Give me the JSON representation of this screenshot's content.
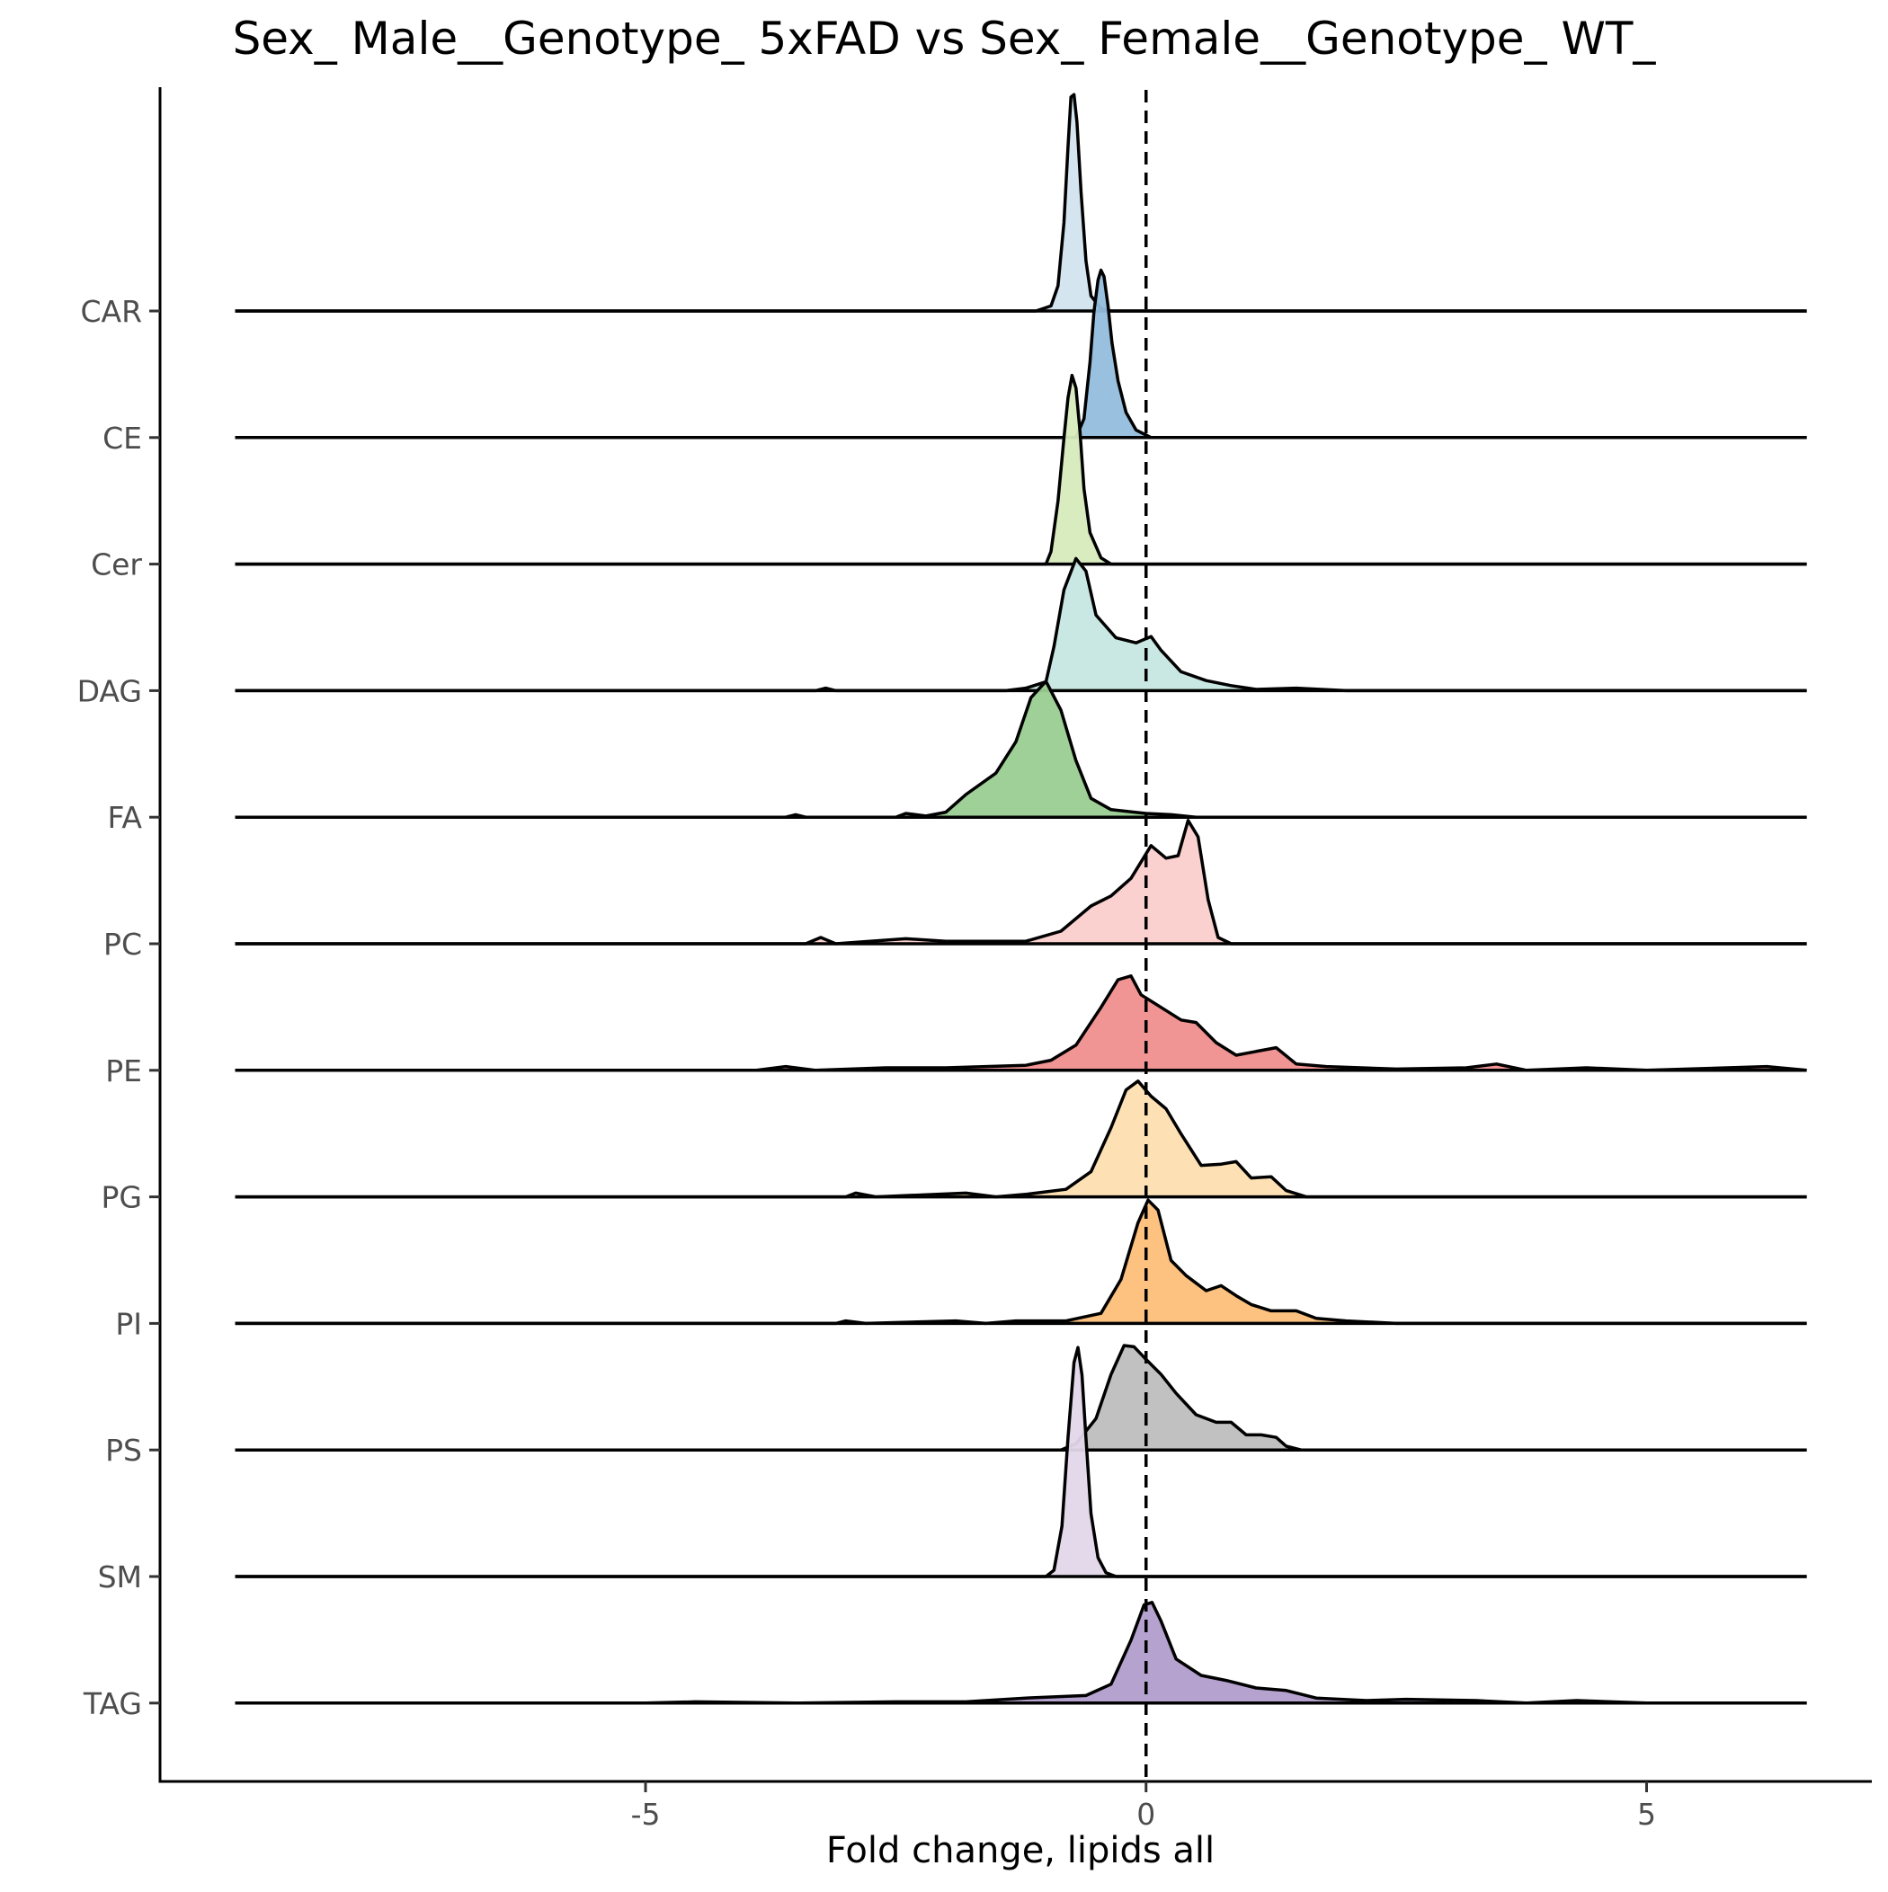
{
  "chart_data": {
    "type": "ridgeline",
    "title": "Sex_ Male__Genotype_ 5xFAD vs Sex_ Female__Genotype_ WT_",
    "xlabel": "Fold change, lipids all",
    "ylabel": "",
    "xlim": [
      -9.85,
      7.25
    ],
    "x_range_drawn": [
      -9.1,
      6.6
    ],
    "x_ticks": [
      -5,
      0,
      5
    ],
    "x_tick_labels": [
      "-5",
      "0",
      "5"
    ],
    "reference_line": {
      "x": 0,
      "style": "dashed"
    },
    "grid": false,
    "legend": "none",
    "categories": [
      "CAR",
      "CE",
      "Cer",
      "DAG",
      "FA",
      "PC",
      "PE",
      "PG",
      "PI",
      "PS",
      "SM",
      "TAG"
    ],
    "series": [
      {
        "category": "CAR",
        "color": "#d3e4ef",
        "points": [
          [
            -9.1,
            0
          ],
          [
            -1.1,
            0
          ],
          [
            -0.95,
            0.04
          ],
          [
            -0.88,
            0.2
          ],
          [
            -0.82,
            0.7
          ],
          [
            -0.78,
            1.3
          ],
          [
            -0.75,
            1.7
          ],
          [
            -0.72,
            1.72
          ],
          [
            -0.69,
            1.5
          ],
          [
            -0.65,
            0.95
          ],
          [
            -0.6,
            0.4
          ],
          [
            -0.55,
            0.12
          ],
          [
            -0.45,
            0.02
          ],
          [
            -0.35,
            0
          ],
          [
            6.6,
            0
          ]
        ]
      },
      {
        "category": "CE",
        "color": "#93bddc",
        "points": [
          [
            -9.1,
            0
          ],
          [
            -0.7,
            0
          ],
          [
            -0.62,
            0.15
          ],
          [
            -0.56,
            0.6
          ],
          [
            -0.52,
            1.0
          ],
          [
            -0.48,
            1.25
          ],
          [
            -0.45,
            1.33
          ],
          [
            -0.42,
            1.28
          ],
          [
            -0.38,
            1.05
          ],
          [
            -0.34,
            0.75
          ],
          [
            -0.28,
            0.45
          ],
          [
            -0.2,
            0.2
          ],
          [
            -0.1,
            0.06
          ],
          [
            0.05,
            0
          ],
          [
            6.6,
            0
          ]
        ]
      },
      {
        "category": "Cer",
        "color": "#d7ebbd",
        "points": [
          [
            -9.1,
            0
          ],
          [
            -1.0,
            0
          ],
          [
            -0.95,
            0.1
          ],
          [
            -0.88,
            0.5
          ],
          [
            -0.82,
            1.0
          ],
          [
            -0.78,
            1.32
          ],
          [
            -0.74,
            1.5
          ],
          [
            -0.7,
            1.4
          ],
          [
            -0.66,
            1.05
          ],
          [
            -0.62,
            0.6
          ],
          [
            -0.56,
            0.25
          ],
          [
            -0.45,
            0.05
          ],
          [
            -0.35,
            0
          ],
          [
            6.6,
            0
          ]
        ]
      },
      {
        "category": "DAG",
        "color": "#c7e7e2",
        "points": [
          [
            -9.1,
            0
          ],
          [
            -3.3,
            0
          ],
          [
            -3.2,
            0.02
          ],
          [
            -3.1,
            0
          ],
          [
            -1.4,
            0
          ],
          [
            -1.2,
            0.02
          ],
          [
            -1.0,
            0.07
          ],
          [
            -0.92,
            0.35
          ],
          [
            -0.82,
            0.8
          ],
          [
            -0.7,
            1.05
          ],
          [
            -0.6,
            0.95
          ],
          [
            -0.5,
            0.6
          ],
          [
            -0.3,
            0.42
          ],
          [
            -0.1,
            0.38
          ],
          [
            0.05,
            0.43
          ],
          [
            0.15,
            0.32
          ],
          [
            0.35,
            0.15
          ],
          [
            0.6,
            0.08
          ],
          [
            0.85,
            0.04
          ],
          [
            1.1,
            0.01
          ],
          [
            1.5,
            0.02
          ],
          [
            2.0,
            0
          ],
          [
            6.6,
            0
          ]
        ]
      },
      {
        "category": "FA",
        "color": "#9acd91",
        "points": [
          [
            -9.1,
            0
          ],
          [
            -3.6,
            0
          ],
          [
            -3.5,
            0.02
          ],
          [
            -3.4,
            0
          ],
          [
            -2.5,
            0
          ],
          [
            -2.4,
            0.03
          ],
          [
            -2.2,
            0.01
          ],
          [
            -2.0,
            0.04
          ],
          [
            -1.8,
            0.18
          ],
          [
            -1.5,
            0.35
          ],
          [
            -1.3,
            0.6
          ],
          [
            -1.15,
            0.95
          ],
          [
            -1.0,
            1.08
          ],
          [
            -0.85,
            0.85
          ],
          [
            -0.7,
            0.45
          ],
          [
            -0.55,
            0.15
          ],
          [
            -0.35,
            0.06
          ],
          [
            0.0,
            0.03
          ],
          [
            0.25,
            0.02
          ],
          [
            0.5,
            0
          ],
          [
            6.6,
            0
          ]
        ]
      },
      {
        "category": "PC",
        "color": "#fbcfce",
        "points": [
          [
            -9.1,
            0
          ],
          [
            -3.4,
            0
          ],
          [
            -3.25,
            0.05
          ],
          [
            -3.1,
            0
          ],
          [
            -2.4,
            0.04
          ],
          [
            -2.0,
            0.02
          ],
          [
            -1.2,
            0.02
          ],
          [
            -0.85,
            0.1
          ],
          [
            -0.55,
            0.3
          ],
          [
            -0.35,
            0.38
          ],
          [
            -0.15,
            0.52
          ],
          [
            0.05,
            0.78
          ],
          [
            0.2,
            0.68
          ],
          [
            0.32,
            0.7
          ],
          [
            0.42,
            0.98
          ],
          [
            0.52,
            0.85
          ],
          [
            0.62,
            0.35
          ],
          [
            0.72,
            0.05
          ],
          [
            0.85,
            0
          ],
          [
            6.6,
            0
          ]
        ]
      },
      {
        "category": "PE",
        "color": "#f08f8e",
        "points": [
          [
            -9.1,
            0
          ],
          [
            -3.9,
            0
          ],
          [
            -3.6,
            0.03
          ],
          [
            -3.3,
            0
          ],
          [
            -2.6,
            0.02
          ],
          [
            -2.0,
            0.02
          ],
          [
            -1.2,
            0.04
          ],
          [
            -0.95,
            0.08
          ],
          [
            -0.7,
            0.2
          ],
          [
            -0.45,
            0.5
          ],
          [
            -0.28,
            0.72
          ],
          [
            -0.15,
            0.75
          ],
          [
            -0.05,
            0.6
          ],
          [
            0.15,
            0.5
          ],
          [
            0.35,
            0.4
          ],
          [
            0.5,
            0.38
          ],
          [
            0.7,
            0.22
          ],
          [
            0.9,
            0.12
          ],
          [
            1.1,
            0.15
          ],
          [
            1.3,
            0.18
          ],
          [
            1.5,
            0.05
          ],
          [
            1.8,
            0.03
          ],
          [
            2.5,
            0.01
          ],
          [
            3.2,
            0.02
          ],
          [
            3.5,
            0.05
          ],
          [
            3.8,
            0
          ],
          [
            4.4,
            0.02
          ],
          [
            5.0,
            0
          ],
          [
            6.2,
            0.03
          ],
          [
            6.6,
            0
          ]
        ]
      },
      {
        "category": "PG",
        "color": "#fddfb1",
        "points": [
          [
            -9.1,
            0
          ],
          [
            -3.0,
            0
          ],
          [
            -2.9,
            0.03
          ],
          [
            -2.7,
            0
          ],
          [
            -1.8,
            0.03
          ],
          [
            -1.5,
            0
          ],
          [
            -1.2,
            0.02
          ],
          [
            -0.8,
            0.06
          ],
          [
            -0.55,
            0.2
          ],
          [
            -0.35,
            0.55
          ],
          [
            -0.2,
            0.85
          ],
          [
            -0.08,
            0.92
          ],
          [
            0.05,
            0.8
          ],
          [
            0.2,
            0.7
          ],
          [
            0.35,
            0.5
          ],
          [
            0.55,
            0.25
          ],
          [
            0.75,
            0.26
          ],
          [
            0.9,
            0.28
          ],
          [
            1.05,
            0.15
          ],
          [
            1.25,
            0.16
          ],
          [
            1.4,
            0.05
          ],
          [
            1.6,
            0
          ],
          [
            6.6,
            0
          ]
        ]
      },
      {
        "category": "PI",
        "color": "#fdbf79",
        "points": [
          [
            -9.1,
            0
          ],
          [
            -3.1,
            0
          ],
          [
            -3.0,
            0.02
          ],
          [
            -2.8,
            0
          ],
          [
            -1.9,
            0.02
          ],
          [
            -1.6,
            0
          ],
          [
            -1.3,
            0.02
          ],
          [
            -0.8,
            0.02
          ],
          [
            -0.45,
            0.08
          ],
          [
            -0.25,
            0.35
          ],
          [
            -0.08,
            0.8
          ],
          [
            0.02,
            0.98
          ],
          [
            0.12,
            0.9
          ],
          [
            0.25,
            0.5
          ],
          [
            0.4,
            0.38
          ],
          [
            0.6,
            0.26
          ],
          [
            0.75,
            0.3
          ],
          [
            0.9,
            0.22
          ],
          [
            1.05,
            0.15
          ],
          [
            1.25,
            0.1
          ],
          [
            1.5,
            0.1
          ],
          [
            1.7,
            0.04
          ],
          [
            2.0,
            0.02
          ],
          [
            2.5,
            0
          ],
          [
            6.6,
            0
          ]
        ]
      },
      {
        "category": "PS",
        "color": "#bebebe",
        "points": [
          [
            -9.1,
            0
          ],
          [
            -0.85,
            0
          ],
          [
            -0.7,
            0.05
          ],
          [
            -0.5,
            0.25
          ],
          [
            -0.35,
            0.6
          ],
          [
            -0.22,
            0.83
          ],
          [
            -0.12,
            0.82
          ],
          [
            0.0,
            0.72
          ],
          [
            0.15,
            0.6
          ],
          [
            0.3,
            0.45
          ],
          [
            0.5,
            0.28
          ],
          [
            0.7,
            0.22
          ],
          [
            0.85,
            0.22
          ],
          [
            1.0,
            0.12
          ],
          [
            1.15,
            0.12
          ],
          [
            1.3,
            0.1
          ],
          [
            1.4,
            0.03
          ],
          [
            1.55,
            0
          ],
          [
            6.6,
            0
          ]
        ]
      },
      {
        "category": "SM",
        "color": "#e3d7e9",
        "points": [
          [
            -9.1,
            0
          ],
          [
            -1.0,
            0
          ],
          [
            -0.92,
            0.05
          ],
          [
            -0.84,
            0.4
          ],
          [
            -0.78,
            1.1
          ],
          [
            -0.72,
            1.7
          ],
          [
            -0.68,
            1.82
          ],
          [
            -0.64,
            1.6
          ],
          [
            -0.6,
            1.1
          ],
          [
            -0.55,
            0.5
          ],
          [
            -0.48,
            0.15
          ],
          [
            -0.4,
            0.03
          ],
          [
            -0.3,
            0
          ],
          [
            6.6,
            0
          ]
        ]
      },
      {
        "category": "TAG",
        "color": "#b19dcb",
        "points": [
          [
            -9.1,
            0
          ],
          [
            -5.0,
            0
          ],
          [
            -4.5,
            0.01
          ],
          [
            -3.5,
            0
          ],
          [
            -2.5,
            0.01
          ],
          [
            -1.8,
            0.01
          ],
          [
            -1.2,
            0.04
          ],
          [
            -0.6,
            0.06
          ],
          [
            -0.35,
            0.15
          ],
          [
            -0.15,
            0.5
          ],
          [
            -0.02,
            0.78
          ],
          [
            0.06,
            0.8
          ],
          [
            0.15,
            0.65
          ],
          [
            0.3,
            0.35
          ],
          [
            0.55,
            0.22
          ],
          [
            0.8,
            0.18
          ],
          [
            1.1,
            0.12
          ],
          [
            1.4,
            0.1
          ],
          [
            1.7,
            0.04
          ],
          [
            2.2,
            0.02
          ],
          [
            2.6,
            0.03
          ],
          [
            3.3,
            0.02
          ],
          [
            3.8,
            0
          ],
          [
            4.3,
            0.02
          ],
          [
            5.0,
            0
          ],
          [
            6.6,
            0
          ]
        ]
      }
    ]
  }
}
